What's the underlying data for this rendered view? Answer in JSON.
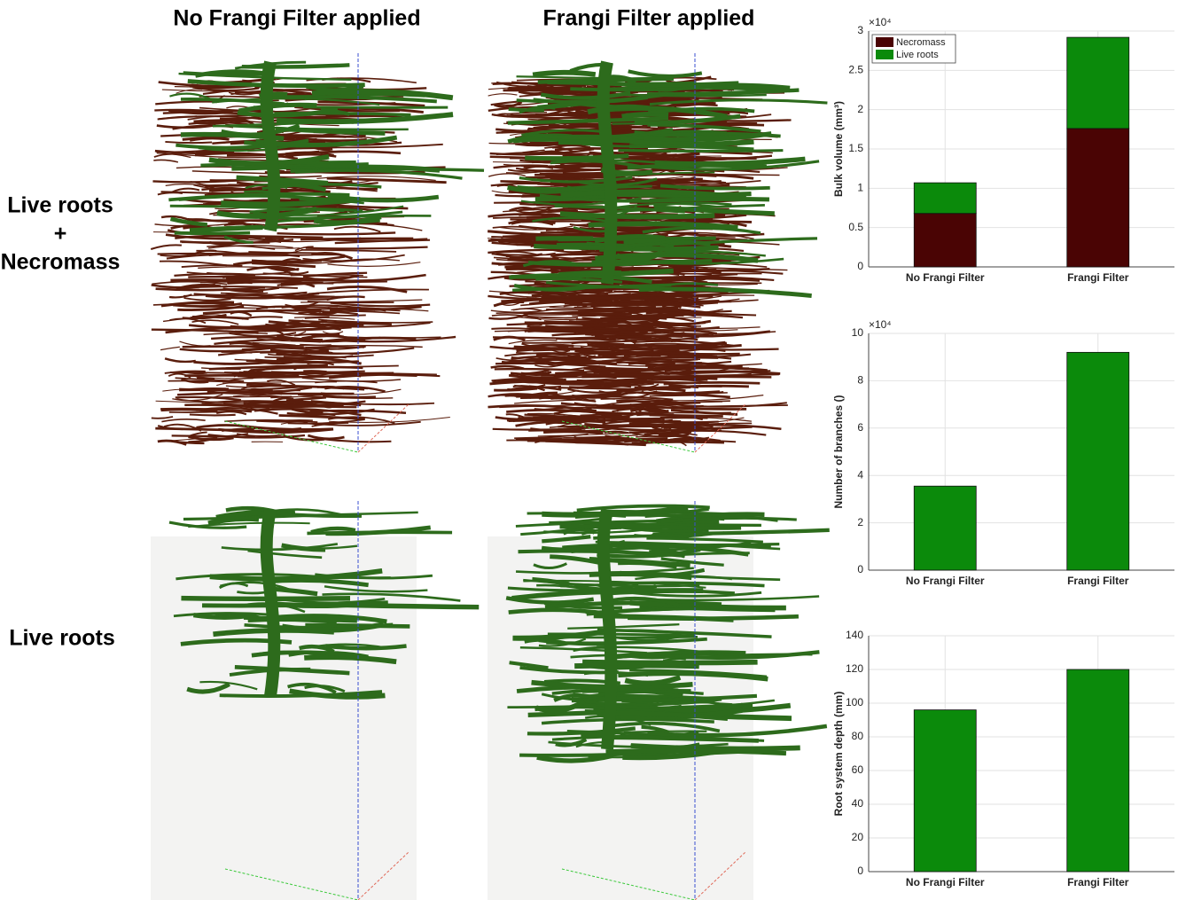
{
  "column_headers": [
    "No Frangi Filter applied",
    "Frangi Filter applied"
  ],
  "row_labels": [
    [
      "Live roots",
      "+",
      "Necromass"
    ],
    [
      "Live roots"
    ]
  ],
  "chart_data": [
    {
      "type": "bar",
      "stacked": true,
      "ylabel": "Bulk volume (mm³)",
      "multiplier": "×10⁴",
      "categories": [
        "No Frangi Filter",
        "Frangi Filter"
      ],
      "series": [
        {
          "name": "Necromass",
          "color": "#4a0404",
          "values": [
            0.68,
            1.76
          ]
        },
        {
          "name": "Live roots",
          "color": "#0b8a0b",
          "values": [
            0.39,
            1.16
          ]
        }
      ],
      "ylim": [
        0,
        3
      ],
      "yticks": [
        0,
        0.5,
        1,
        1.5,
        2,
        2.5,
        3
      ],
      "grid": true,
      "legend": "upper-left"
    },
    {
      "type": "bar",
      "ylabel": "Number of branches ()",
      "multiplier": "×10⁴",
      "categories": [
        "No Frangi Filter",
        "Frangi Filter"
      ],
      "values": [
        3.55,
        9.2
      ],
      "color": "#0b8a0b",
      "ylim": [
        0,
        10
      ],
      "yticks": [
        0,
        2,
        4,
        6,
        8,
        10
      ],
      "grid": true
    },
    {
      "type": "bar",
      "ylabel": "Root system depth (mm)",
      "categories": [
        "No Frangi Filter",
        "Frangi Filter"
      ],
      "values": [
        96,
        120
      ],
      "color": "#0b8a0b",
      "ylim": [
        0,
        140
      ],
      "yticks": [
        0,
        20,
        40,
        60,
        80,
        100,
        120,
        140
      ],
      "grid": true
    }
  ]
}
